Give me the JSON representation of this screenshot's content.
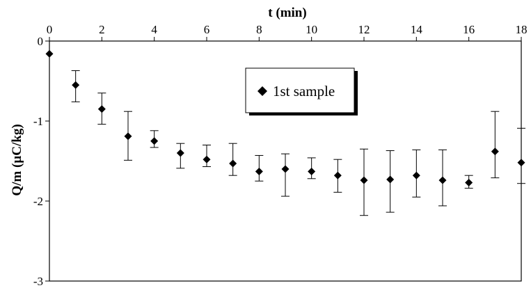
{
  "chart_data": {
    "type": "scatter",
    "xlabel": "t (min)",
    "ylabel": "Q/m (µC/kg)",
    "xlim": [
      0,
      18
    ],
    "ylim": [
      -3,
      0
    ],
    "x_ticks": [
      "0",
      "2",
      "4",
      "6",
      "8",
      "10",
      "12",
      "14",
      "16",
      "18"
    ],
    "y_ticks": [
      "0",
      "-1",
      "-2",
      "-3"
    ],
    "x_axis_position": "top",
    "grid": false,
    "legend_placement": "top-center",
    "series": [
      {
        "name": "1st sample",
        "marker": "diamond",
        "color": "#000000",
        "points": [
          {
            "x": 0,
            "y": -0.16
          },
          {
            "x": 1,
            "y": -0.55,
            "err_low": -0.76,
            "err_high": -0.37
          },
          {
            "x": 2,
            "y": -0.85,
            "err_low": -1.04,
            "err_high": -0.65
          },
          {
            "x": 3,
            "y": -1.19,
            "err_low": -1.49,
            "err_high": -0.88
          },
          {
            "x": 4,
            "y": -1.25,
            "err_low": -1.33,
            "err_high": -1.12
          },
          {
            "x": 5,
            "y": -1.4,
            "err_low": -1.59,
            "err_high": -1.28
          },
          {
            "x": 6,
            "y": -1.48,
            "err_low": -1.57,
            "err_high": -1.3
          },
          {
            "x": 7,
            "y": -1.53,
            "err_low": -1.68,
            "err_high": -1.28
          },
          {
            "x": 8,
            "y": -1.63,
            "err_low": -1.75,
            "err_high": -1.43
          },
          {
            "x": 9,
            "y": -1.6,
            "err_low": -1.94,
            "err_high": -1.41
          },
          {
            "x": 10,
            "y": -1.63,
            "err_low": -1.72,
            "err_high": -1.46
          },
          {
            "x": 11,
            "y": -1.68,
            "err_low": -1.89,
            "err_high": -1.48
          },
          {
            "x": 12,
            "y": -1.74,
            "err_low": -2.18,
            "err_high": -1.35
          },
          {
            "x": 13,
            "y": -1.73,
            "err_low": -2.14,
            "err_high": -1.37
          },
          {
            "x": 14,
            "y": -1.68,
            "err_low": -1.95,
            "err_high": -1.36
          },
          {
            "x": 15,
            "y": -1.74,
            "err_low": -2.06,
            "err_high": -1.36
          },
          {
            "x": 16,
            "y": -1.77,
            "err_low": -1.84,
            "err_high": -1.68
          },
          {
            "x": 17,
            "y": -1.38,
            "err_low": -1.71,
            "err_high": -0.88
          },
          {
            "x": 18,
            "y": -1.52,
            "err_low": -1.78,
            "err_high": -1.09
          }
        ]
      }
    ]
  }
}
